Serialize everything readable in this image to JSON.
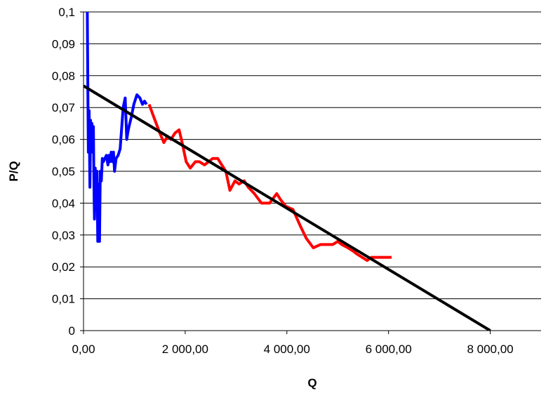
{
  "chart_data": {
    "type": "line",
    "title": "",
    "xlabel": "Q",
    "ylabel": "P/Q",
    "xlim": [
      0,
      9000
    ],
    "ylim": [
      0,
      0.1
    ],
    "grid": "horizontal",
    "x_ticks": [
      {
        "value": 0,
        "label": "0,00"
      },
      {
        "value": 2000,
        "label": "2 000,00"
      },
      {
        "value": 4000,
        "label": "4 000,00"
      },
      {
        "value": 6000,
        "label": "6 000,00"
      },
      {
        "value": 8000,
        "label": "8 000,00"
      }
    ],
    "y_ticks": [
      {
        "value": 0,
        "label": "0"
      },
      {
        "value": 0.01,
        "label": "0,01"
      },
      {
        "value": 0.02,
        "label": "0,02"
      },
      {
        "value": 0.03,
        "label": "0,03"
      },
      {
        "value": 0.04,
        "label": "0,04"
      },
      {
        "value": 0.05,
        "label": "0,05"
      },
      {
        "value": 0.06,
        "label": "0,06"
      },
      {
        "value": 0.07,
        "label": "0,07"
      },
      {
        "value": 0.08,
        "label": "0,08"
      },
      {
        "value": 0.09,
        "label": "0,09"
      },
      {
        "value": 0.1,
        "label": "0,1"
      }
    ],
    "series": [
      {
        "color": "#0000ff",
        "x": [
          60,
          75,
          85,
          95,
          110,
          125,
          140,
          150,
          165,
          180,
          195,
          205,
          215,
          230,
          250,
          265,
          280,
          300,
          315,
          330,
          350,
          370,
          390,
          420,
          450,
          480,
          500,
          520,
          545,
          570,
          590,
          610,
          640,
          680,
          720,
          780,
          820,
          850,
          870,
          895,
          940,
          990,
          1050,
          1110,
          1160,
          1200,
          1240
        ],
        "y": [
          0.1,
          0.1,
          0.075,
          0.056,
          0.069,
          0.045,
          0.066,
          0.058,
          0.065,
          0.056,
          0.064,
          0.045,
          0.035,
          0.051,
          0.038,
          0.05,
          0.028,
          0.046,
          0.028,
          0.05,
          0.047,
          0.054,
          0.053,
          0.054,
          0.055,
          0.052,
          0.055,
          0.053,
          0.056,
          0.053,
          0.056,
          0.05,
          0.054,
          0.055,
          0.057,
          0.07,
          0.073,
          0.06,
          0.062,
          0.064,
          0.067,
          0.071,
          0.074,
          0.073,
          0.071,
          0.072,
          0.071
        ]
      },
      {
        "color": "#ff0000",
        "x": [
          1290,
          1360,
          1430,
          1500,
          1580,
          1650,
          1720,
          1800,
          1880,
          1940,
          2020,
          2100,
          2200,
          2280,
          2380,
          2460,
          2540,
          2640,
          2720,
          2800,
          2880,
          2980,
          3060,
          3160,
          3240,
          3360,
          3500,
          3660,
          3800,
          3880,
          3980,
          4120,
          4260,
          4380,
          4520,
          4660,
          4760,
          4900,
          5000,
          5080,
          5200,
          5300,
          5380,
          5480,
          5580,
          5660,
          5740,
          5800,
          5880,
          5960,
          6060
        ],
        "y": [
          0.071,
          0.068,
          0.065,
          0.062,
          0.059,
          0.061,
          0.06,
          0.062,
          0.063,
          0.059,
          0.053,
          0.051,
          0.053,
          0.053,
          0.052,
          0.053,
          0.054,
          0.054,
          0.052,
          0.05,
          0.044,
          0.047,
          0.046,
          0.047,
          0.045,
          0.043,
          0.04,
          0.04,
          0.043,
          0.041,
          0.039,
          0.038,
          0.033,
          0.029,
          0.026,
          0.027,
          0.027,
          0.027,
          0.028,
          0.027,
          0.026,
          0.025,
          0.024,
          0.023,
          0.022,
          0.023,
          0.023,
          0.023,
          0.023,
          0.023,
          0.023
        ]
      },
      {
        "color": "#000000",
        "x": [
          0,
          8000
        ],
        "y": [
          0.0768,
          0
        ]
      }
    ]
  }
}
